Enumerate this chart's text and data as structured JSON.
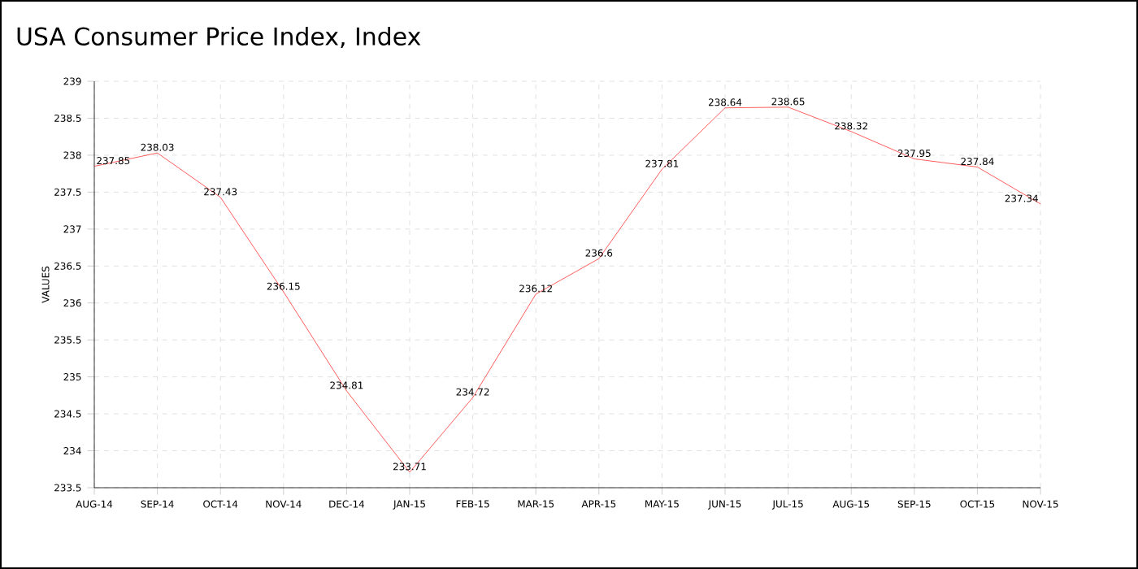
{
  "chart_data": {
    "type": "line",
    "title": "USA Consumer Price Index, Index",
    "ylabel": "VALUES",
    "categories": [
      "AUG-14",
      "SEP-14",
      "OCT-14",
      "NOV-14",
      "DEC-14",
      "JAN-15",
      "FEB-15",
      "MAR-15",
      "APR-15",
      "MAY-15",
      "JUN-15",
      "JUL-15",
      "AUG-15",
      "SEP-15",
      "OCT-15",
      "NOV-15"
    ],
    "values": [
      237.85,
      238.03,
      237.43,
      236.15,
      234.81,
      233.71,
      234.72,
      236.12,
      236.6,
      237.81,
      238.64,
      238.65,
      238.32,
      237.95,
      237.84,
      237.34
    ],
    "color": "#ff3333",
    "ylim": [
      233.5,
      239
    ],
    "yticks": [
      233.5,
      234,
      234.5,
      235,
      235.5,
      236,
      236.5,
      237,
      237.5,
      238,
      238.5,
      239
    ],
    "grid": true,
    "data_labels": true,
    "marker": "none",
    "line_style": "solid"
  }
}
